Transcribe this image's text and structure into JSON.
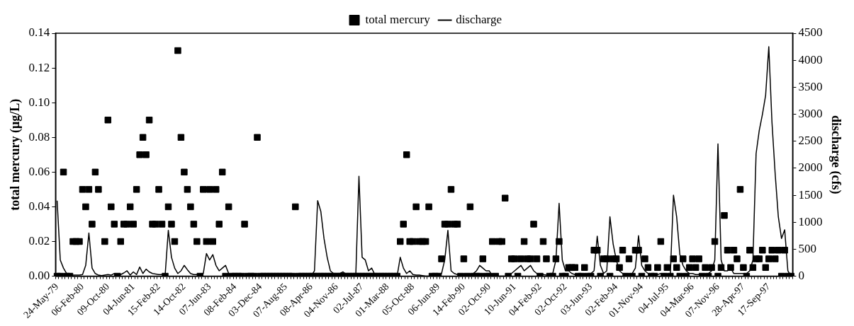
{
  "chart_data": {
    "type": "line",
    "ylabel": "total mercury (μg/L)",
    "y2label": "discharge (cfs)",
    "categories": [
      "24-May-79",
      null,
      null,
      null,
      null,
      null,
      null,
      null,
      "06-Feb-80",
      null,
      null,
      null,
      null,
      null,
      null,
      null,
      "09-Oct-80",
      null,
      null,
      null,
      null,
      null,
      null,
      null,
      "04-Jun-81",
      null,
      null,
      null,
      null,
      null,
      null,
      null,
      "15-Feb-82",
      null,
      null,
      null,
      null,
      null,
      null,
      null,
      "14-Oct-82",
      null,
      null,
      null,
      null,
      null,
      null,
      null,
      "07-Jun-83",
      null,
      null,
      null,
      null,
      null,
      null,
      null,
      "08-Feb-84",
      null,
      null,
      null,
      null,
      null,
      null,
      null,
      "03-Dec-84",
      null,
      null,
      null,
      null,
      null,
      null,
      null,
      "07-Aug-85",
      null,
      null,
      null,
      null,
      null,
      null,
      null,
      "08-Apr-86",
      null,
      null,
      null,
      null,
      null,
      null,
      null,
      "04-Nov-86",
      null,
      null,
      null,
      null,
      null,
      null,
      null,
      "02-Jul-87",
      null,
      null,
      null,
      null,
      null,
      null,
      null,
      "01-Mar-88",
      null,
      null,
      null,
      null,
      null,
      null,
      null,
      "05-Oct-88",
      null,
      null,
      null,
      null,
      null,
      null,
      null,
      "06-Jun-89",
      null,
      null,
      null,
      null,
      null,
      null,
      null,
      "14-Feb-90",
      null,
      null,
      null,
      null,
      null,
      null,
      null,
      "02-Oct-90",
      null,
      null,
      null,
      null,
      null,
      null,
      null,
      "10-Jun-91",
      null,
      null,
      null,
      null,
      null,
      null,
      null,
      "04-Feb-92",
      null,
      null,
      null,
      null,
      null,
      null,
      null,
      "02-Oct-92",
      null,
      null,
      null,
      null,
      null,
      null,
      null,
      "03-Jun-93",
      null,
      null,
      null,
      null,
      null,
      null,
      null,
      "02-Feb-94",
      null,
      null,
      null,
      null,
      null,
      null,
      null,
      "01-Nov-94",
      null,
      null,
      null,
      null,
      null,
      null,
      null,
      "04-Jul-95",
      null,
      null,
      null,
      null,
      null,
      null,
      null,
      "04-Mar-96",
      null,
      null,
      null,
      null,
      null,
      null,
      null,
      "07-Nov-96",
      null,
      null,
      null,
      null,
      null,
      null,
      null,
      "28-Apr-97",
      null,
      null,
      null,
      null,
      null,
      null,
      null,
      "17-Sep-97",
      null,
      null,
      null,
      null,
      null,
      null,
      null
    ],
    "series": [
      {
        "name": "total mercury",
        "type": "scatter",
        "marker": "square",
        "color": "#000000",
        "values": [
          0,
          0,
          0.06,
          0,
          0,
          0.02,
          0.02,
          0.02,
          0.05,
          0.04,
          0.05,
          0.03,
          0.06,
          0.05,
          null,
          0.02,
          0.09,
          0.04,
          0.03,
          0,
          0.02,
          0.03,
          0.03,
          0.04,
          0.03,
          0.05,
          0.07,
          0.08,
          0.07,
          0.09,
          0.03,
          0.03,
          0.05,
          0.03,
          0,
          0.04,
          0.03,
          0.02,
          0.13,
          0.08,
          0.06,
          0.05,
          0.04,
          0.03,
          0.02,
          0,
          0.05,
          0.02,
          0.05,
          0.02,
          0.05,
          0.03,
          0.06,
          0,
          0.04,
          0,
          0,
          0,
          0,
          0.03,
          0,
          0,
          0,
          0.08,
          0,
          0,
          0,
          0,
          0,
          0,
          0,
          0,
          0,
          0,
          0,
          0.04,
          0,
          0,
          0,
          0,
          0,
          0,
          0,
          0,
          0,
          0,
          0,
          0,
          0,
          0,
          0,
          0,
          0,
          0,
          0,
          0,
          0,
          0,
          0,
          0,
          0,
          0,
          0,
          0,
          0,
          0,
          0,
          0,
          0.02,
          0.03,
          0.07,
          0.02,
          0.02,
          0.04,
          0.02,
          0.02,
          0.02,
          0.04,
          0,
          0,
          0,
          0.01,
          0.03,
          0.03,
          0.05,
          0.03,
          0.03,
          0,
          0.01,
          0,
          0.04,
          0,
          0,
          0,
          0.01,
          0,
          0,
          0.02,
          0,
          0.02,
          0.02,
          0.045,
          0,
          0.01,
          0.01,
          0,
          0.01,
          0.02,
          0.01,
          0.01,
          0.03,
          0.01,
          0,
          0.02,
          0.01,
          0,
          0,
          0.01,
          0.02,
          0,
          0,
          0.005,
          0.005,
          0.005,
          0,
          0,
          0.005,
          0,
          0,
          0.015,
          0.015,
          0,
          0.01,
          0.01,
          0,
          0.01,
          0.01,
          0.005,
          0.015,
          0,
          0.01,
          0,
          0.015,
          0.015,
          0,
          0.01,
          0.005,
          0,
          0,
          0.005,
          0.02,
          0,
          0.005,
          0,
          0.01,
          0.005,
          0,
          0.01,
          0,
          0.005,
          0.01,
          0.005,
          0.01,
          0,
          0.005,
          0,
          0.005,
          0.02,
          0,
          0.005,
          0.035,
          0.015,
          0.005,
          0.015,
          0.01,
          0.05,
          0.005,
          0,
          0.015,
          0.005,
          0.01,
          0.01,
          0.015,
          0.005,
          0.01,
          0.015,
          0.01,
          0.015,
          0,
          0.015,
          0,
          0
        ]
      },
      {
        "name": "discharge",
        "axis": "y2",
        "marker": "none",
        "line_style": "solid",
        "color": "#000000",
        "values": [
          1400,
          300,
          150,
          50,
          30,
          20,
          20,
          20,
          30,
          200,
          800,
          150,
          50,
          20,
          10,
          20,
          30,
          20,
          50,
          20,
          30,
          60,
          100,
          20,
          80,
          30,
          170,
          50,
          130,
          80,
          50,
          40,
          30,
          30,
          20,
          850,
          350,
          150,
          50,
          100,
          200,
          120,
          50,
          30,
          30,
          20,
          50,
          420,
          300,
          400,
          200,
          100,
          150,
          200,
          50,
          0,
          0,
          0,
          0,
          0,
          0,
          0,
          0,
          0,
          0,
          0,
          0,
          0,
          0,
          0,
          0,
          0,
          0,
          0,
          0,
          0,
          0,
          0,
          0,
          0,
          0,
          100,
          1400,
          1200,
          700,
          350,
          100,
          50,
          0,
          50,
          80,
          30,
          0,
          0,
          0,
          1850,
          350,
          300,
          100,
          150,
          30,
          0,
          0,
          0,
          0,
          0,
          0,
          0,
          350,
          150,
          50,
          100,
          30,
          20,
          20,
          10,
          0,
          0,
          0,
          0,
          0,
          50,
          300,
          850,
          100,
          50,
          30,
          20,
          20,
          20,
          30,
          50,
          100,
          200,
          150,
          100,
          100,
          0,
          0,
          0,
          0,
          0,
          0,
          50,
          100,
          150,
          200,
          100,
          150,
          200,
          100,
          50,
          30,
          30,
          20,
          20,
          50,
          300,
          1350,
          300,
          100,
          100,
          50,
          30,
          30,
          20,
          20,
          30,
          50,
          100,
          740,
          200,
          50,
          100,
          1100,
          600,
          300,
          100,
          50,
          50,
          50,
          50,
          150,
          750,
          200,
          100,
          50,
          30,
          30,
          30,
          50,
          50,
          30,
          30,
          1500,
          1100,
          400,
          200,
          100,
          50,
          50,
          30,
          30,
          30,
          30,
          50,
          100,
          300,
          2450,
          300,
          100,
          100,
          150,
          50,
          50,
          50,
          50,
          50,
          100,
          300,
          2270,
          2700,
          3000,
          3350,
          4250,
          2850,
          1900,
          1100,
          700,
          860,
          100,
          0
        ]
      }
    ],
    "ylim": [
      0,
      0.14
    ],
    "yticks": [
      {
        "value": 0,
        "label": "0.00"
      },
      {
        "value": 0.02,
        "label": "0.02"
      },
      {
        "value": 0.04,
        "label": "0.04"
      },
      {
        "value": 0.06,
        "label": "0.06"
      },
      {
        "value": 0.08,
        "label": "0.08"
      },
      {
        "value": 0.1,
        "label": "0.10"
      },
      {
        "value": 0.12,
        "label": "0.12"
      },
      {
        "value": 0.14,
        "label": "0.14"
      }
    ],
    "y2lim": [
      0,
      4500
    ],
    "y2ticks": [
      0,
      500,
      1000,
      1500,
      2000,
      2500,
      3000,
      3500,
      4000,
      4500
    ],
    "grid": false,
    "legend": "top"
  }
}
